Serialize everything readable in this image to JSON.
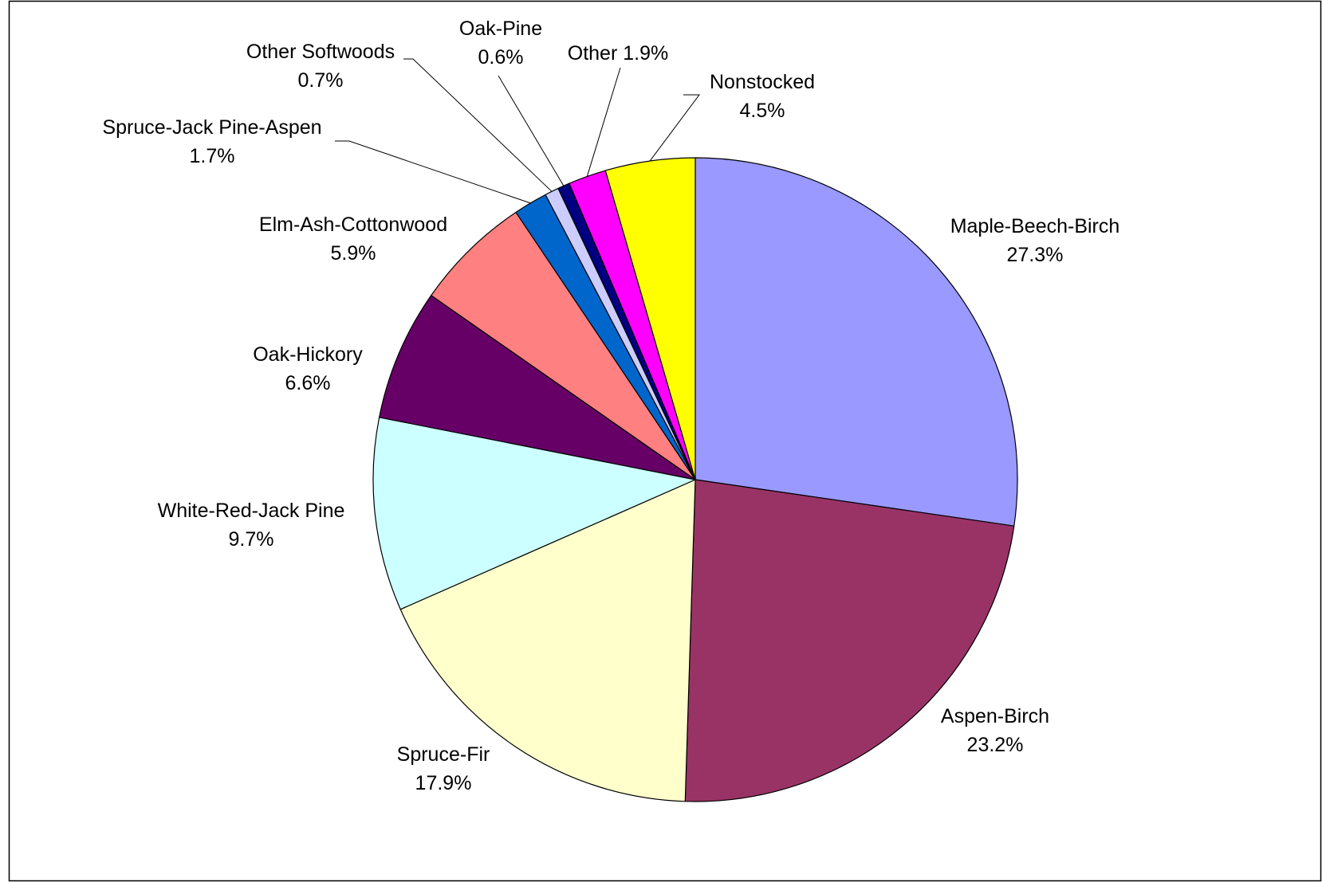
{
  "chart_data": {
    "type": "pie",
    "title": "",
    "start": "12 o'clock",
    "direction": "clockwise",
    "legend": "none",
    "slices": [
      {
        "label": "Maple-Beech-Birch",
        "value": 27.3,
        "value_text": "27.3%",
        "color": "#9999FF"
      },
      {
        "label": "Aspen-Birch",
        "value": 23.2,
        "value_text": "23.2%",
        "color": "#993366"
      },
      {
        "label": "Spruce-Fir",
        "value": 17.9,
        "value_text": "17.9%",
        "color": "#FFFFCC"
      },
      {
        "label": "White-Red-Jack Pine",
        "value": 9.7,
        "value_text": "9.7%",
        "color": "#CCFFFF"
      },
      {
        "label": "Oak-Hickory",
        "value": 6.6,
        "value_text": "6.6%",
        "color": "#660066"
      },
      {
        "label": "Elm-Ash-Cottonwood",
        "value": 5.9,
        "value_text": "5.9%",
        "color": "#FF8080"
      },
      {
        "label": "Spruce-Jack Pine-Aspen",
        "value": 1.7,
        "value_text": "1.7%",
        "color": "#0066CC"
      },
      {
        "label": "Other Softwoods",
        "value": 0.7,
        "value_text": "0.7%",
        "color": "#CCCCFF"
      },
      {
        "label": "Oak-Pine",
        "value": 0.6,
        "value_text": "0.6%",
        "color": "#000080"
      },
      {
        "label": "Other",
        "value": 1.9,
        "value_text": "1.9%",
        "color": "#FF00FF"
      },
      {
        "label": "Nonstocked",
        "value": 4.5,
        "value_text": "4.5%",
        "color": "#FFFF00"
      }
    ]
  }
}
